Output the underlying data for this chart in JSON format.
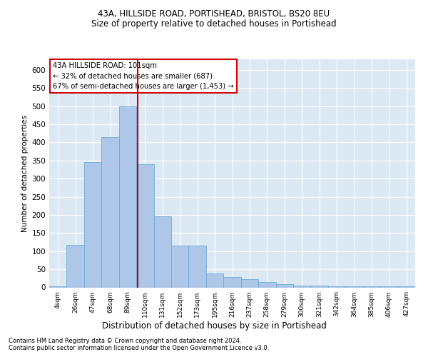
{
  "title1": "43A, HILLSIDE ROAD, PORTISHEAD, BRISTOL, BS20 8EU",
  "title2": "Size of property relative to detached houses in Portishead",
  "xlabel": "Distribution of detached houses by size in Portishead",
  "ylabel": "Number of detached properties",
  "footnote1": "Contains HM Land Registry data © Crown copyright and database right 2024.",
  "footnote2": "Contains public sector information licensed under the Open Government Licence v3.0.",
  "annotation_line1": "43A HILLSIDE ROAD: 101sqm",
  "annotation_line2": "← 32% of detached houses are smaller (687)",
  "annotation_line3": "67% of semi-detached houses are larger (1,453) →",
  "bar_color": "#aec6e8",
  "bar_edge_color": "#6baed6",
  "ref_line_color": "#cc0000",
  "categories": [
    "4sqm",
    "26sqm",
    "47sqm",
    "68sqm",
    "89sqm",
    "110sqm",
    "131sqm",
    "152sqm",
    "173sqm",
    "195sqm",
    "216sqm",
    "237sqm",
    "258sqm",
    "279sqm",
    "300sqm",
    "321sqm",
    "342sqm",
    "364sqm",
    "385sqm",
    "406sqm",
    "427sqm"
  ],
  "values": [
    2,
    118,
    345,
    415,
    500,
    340,
    195,
    115,
    115,
    38,
    28,
    22,
    14,
    8,
    5,
    5,
    3,
    2,
    2,
    2,
    2
  ],
  "ylim": [
    0,
    630
  ],
  "yticks": [
    0,
    50,
    100,
    150,
    200,
    250,
    300,
    350,
    400,
    450,
    500,
    550,
    600
  ],
  "ref_line_x": 4.58,
  "background_color": "#dde8f5",
  "plot_bg": "#dde8f5"
}
